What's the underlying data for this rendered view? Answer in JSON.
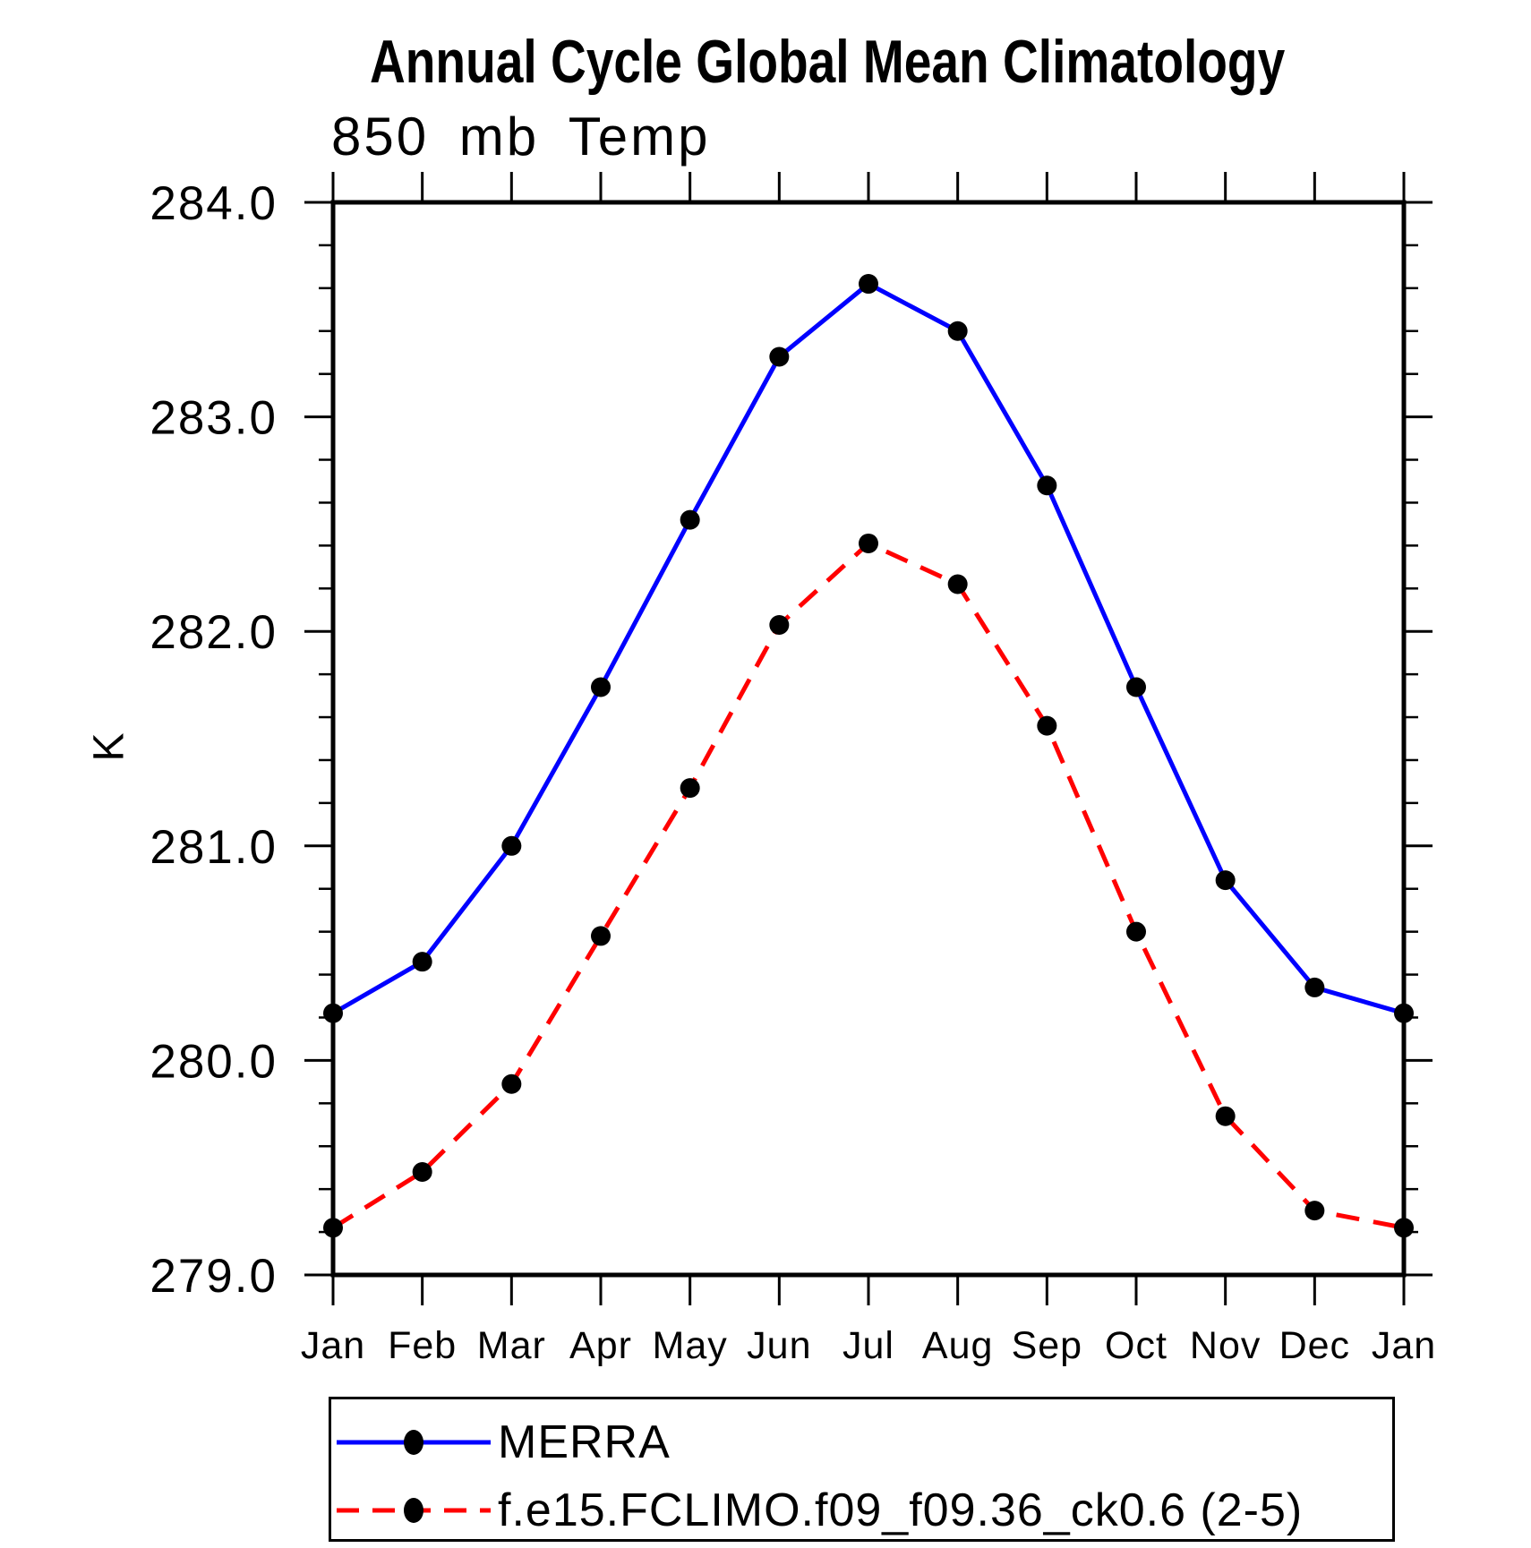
{
  "page": {
    "title": "Annual Cycle Global Mean Climatology"
  },
  "chart_data": {
    "type": "line",
    "title": "Annual Cycle Global Mean Climatology",
    "subtitle": "850 mb Temp",
    "xlabel": "",
    "ylabel": "K",
    "ylim": [
      279.0,
      284.0
    ],
    "ytick_major_labels": [
      "279.0",
      "280.0",
      "281.0",
      "282.0",
      "283.0",
      "284.0"
    ],
    "ytick_minor_step": 0.2,
    "categories": [
      "Jan",
      "Feb",
      "Mar",
      "Apr",
      "May",
      "Jun",
      "Jul",
      "Aug",
      "Sep",
      "Oct",
      "Nov",
      "Dec",
      "Jan"
    ],
    "grid": false,
    "legend_position": "bottom-left",
    "axis_color": "#000000",
    "marker_color": "#000000",
    "series": [
      {
        "name": "MERRA",
        "color": "#0000ff",
        "line_style": "solid",
        "marker": "filled-circle",
        "values": [
          280.22,
          280.46,
          281.0,
          281.74,
          282.52,
          283.28,
          283.62,
          283.4,
          282.68,
          281.74,
          280.84,
          280.34,
          280.22
        ]
      },
      {
        "name": "f.e15.FCLIMO.f09_f09.36_ck0.6 (2-5)",
        "color": "#ff0000",
        "line_style": "dashed",
        "marker": "filled-circle",
        "values": [
          279.22,
          279.48,
          279.89,
          280.58,
          281.27,
          282.03,
          282.41,
          282.22,
          281.56,
          280.6,
          279.74,
          279.3,
          279.22
        ]
      }
    ]
  }
}
